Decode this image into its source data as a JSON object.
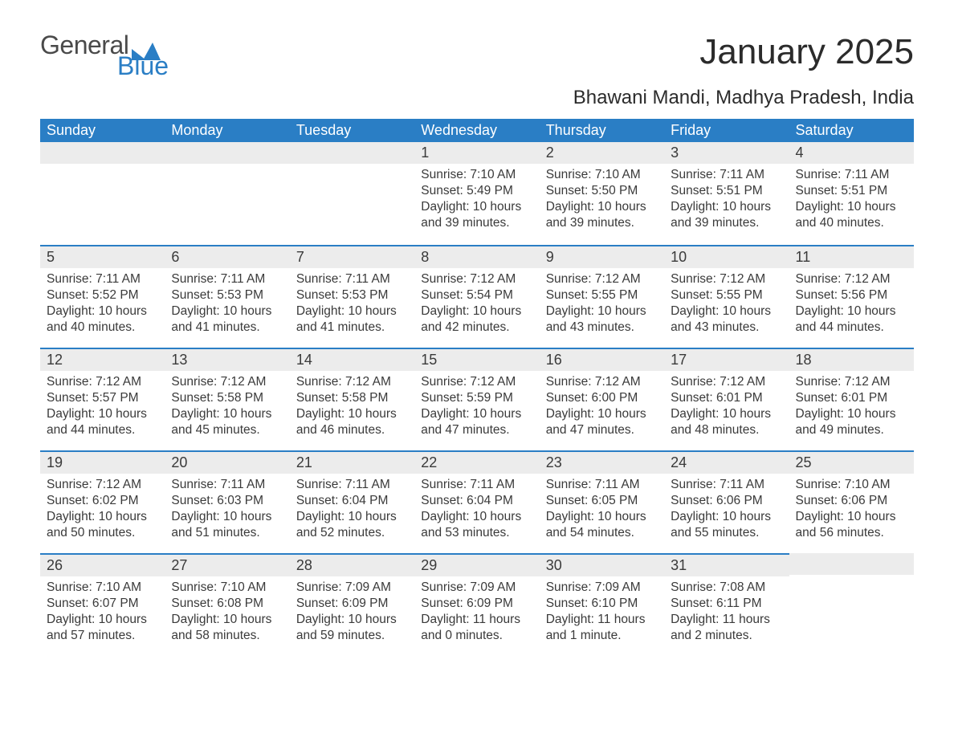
{
  "brand": {
    "general": "General",
    "blue": "Blue",
    "mark_color": "#2a7ec5"
  },
  "header": {
    "month_title": "January 2025",
    "location": "Bhawani Mandi, Madhya Pradesh, India"
  },
  "calendar": {
    "weekday_labels": [
      "Sunday",
      "Monday",
      "Tuesday",
      "Wednesday",
      "Thursday",
      "Friday",
      "Saturday"
    ],
    "header_bg": "#2a7ec5",
    "header_fg": "#ffffff",
    "daynum_bg": "#ececec",
    "row_border_color": "#2a7ec5",
    "text_color": "#3a3a3a",
    "body_fontsize": 15.5,
    "daynum_fontsize": 18,
    "first_weekday_index": 3,
    "days": [
      {
        "n": 1,
        "sunrise": "7:10 AM",
        "sunset": "5:49 PM",
        "daylight": "10 hours and 39 minutes."
      },
      {
        "n": 2,
        "sunrise": "7:10 AM",
        "sunset": "5:50 PM",
        "daylight": "10 hours and 39 minutes."
      },
      {
        "n": 3,
        "sunrise": "7:11 AM",
        "sunset": "5:51 PM",
        "daylight": "10 hours and 39 minutes."
      },
      {
        "n": 4,
        "sunrise": "7:11 AM",
        "sunset": "5:51 PM",
        "daylight": "10 hours and 40 minutes."
      },
      {
        "n": 5,
        "sunrise": "7:11 AM",
        "sunset": "5:52 PM",
        "daylight": "10 hours and 40 minutes."
      },
      {
        "n": 6,
        "sunrise": "7:11 AM",
        "sunset": "5:53 PM",
        "daylight": "10 hours and 41 minutes."
      },
      {
        "n": 7,
        "sunrise": "7:11 AM",
        "sunset": "5:53 PM",
        "daylight": "10 hours and 41 minutes."
      },
      {
        "n": 8,
        "sunrise": "7:12 AM",
        "sunset": "5:54 PM",
        "daylight": "10 hours and 42 minutes."
      },
      {
        "n": 9,
        "sunrise": "7:12 AM",
        "sunset": "5:55 PM",
        "daylight": "10 hours and 43 minutes."
      },
      {
        "n": 10,
        "sunrise": "7:12 AM",
        "sunset": "5:55 PM",
        "daylight": "10 hours and 43 minutes."
      },
      {
        "n": 11,
        "sunrise": "7:12 AM",
        "sunset": "5:56 PM",
        "daylight": "10 hours and 44 minutes."
      },
      {
        "n": 12,
        "sunrise": "7:12 AM",
        "sunset": "5:57 PM",
        "daylight": "10 hours and 44 minutes."
      },
      {
        "n": 13,
        "sunrise": "7:12 AM",
        "sunset": "5:58 PM",
        "daylight": "10 hours and 45 minutes."
      },
      {
        "n": 14,
        "sunrise": "7:12 AM",
        "sunset": "5:58 PM",
        "daylight": "10 hours and 46 minutes."
      },
      {
        "n": 15,
        "sunrise": "7:12 AM",
        "sunset": "5:59 PM",
        "daylight": "10 hours and 47 minutes."
      },
      {
        "n": 16,
        "sunrise": "7:12 AM",
        "sunset": "6:00 PM",
        "daylight": "10 hours and 47 minutes."
      },
      {
        "n": 17,
        "sunrise": "7:12 AM",
        "sunset": "6:01 PM",
        "daylight": "10 hours and 48 minutes."
      },
      {
        "n": 18,
        "sunrise": "7:12 AM",
        "sunset": "6:01 PM",
        "daylight": "10 hours and 49 minutes."
      },
      {
        "n": 19,
        "sunrise": "7:12 AM",
        "sunset": "6:02 PM",
        "daylight": "10 hours and 50 minutes."
      },
      {
        "n": 20,
        "sunrise": "7:11 AM",
        "sunset": "6:03 PM",
        "daylight": "10 hours and 51 minutes."
      },
      {
        "n": 21,
        "sunrise": "7:11 AM",
        "sunset": "6:04 PM",
        "daylight": "10 hours and 52 minutes."
      },
      {
        "n": 22,
        "sunrise": "7:11 AM",
        "sunset": "6:04 PM",
        "daylight": "10 hours and 53 minutes."
      },
      {
        "n": 23,
        "sunrise": "7:11 AM",
        "sunset": "6:05 PM",
        "daylight": "10 hours and 54 minutes."
      },
      {
        "n": 24,
        "sunrise": "7:11 AM",
        "sunset": "6:06 PM",
        "daylight": "10 hours and 55 minutes."
      },
      {
        "n": 25,
        "sunrise": "7:10 AM",
        "sunset": "6:06 PM",
        "daylight": "10 hours and 56 minutes."
      },
      {
        "n": 26,
        "sunrise": "7:10 AM",
        "sunset": "6:07 PM",
        "daylight": "10 hours and 57 minutes."
      },
      {
        "n": 27,
        "sunrise": "7:10 AM",
        "sunset": "6:08 PM",
        "daylight": "10 hours and 58 minutes."
      },
      {
        "n": 28,
        "sunrise": "7:09 AM",
        "sunset": "6:09 PM",
        "daylight": "10 hours and 59 minutes."
      },
      {
        "n": 29,
        "sunrise": "7:09 AM",
        "sunset": "6:09 PM",
        "daylight": "11 hours and 0 minutes."
      },
      {
        "n": 30,
        "sunrise": "7:09 AM",
        "sunset": "6:10 PM",
        "daylight": "11 hours and 1 minute."
      },
      {
        "n": 31,
        "sunrise": "7:08 AM",
        "sunset": "6:11 PM",
        "daylight": "11 hours and 2 minutes."
      }
    ],
    "labels": {
      "sunrise": "Sunrise:",
      "sunset": "Sunset:",
      "daylight": "Daylight:"
    }
  }
}
